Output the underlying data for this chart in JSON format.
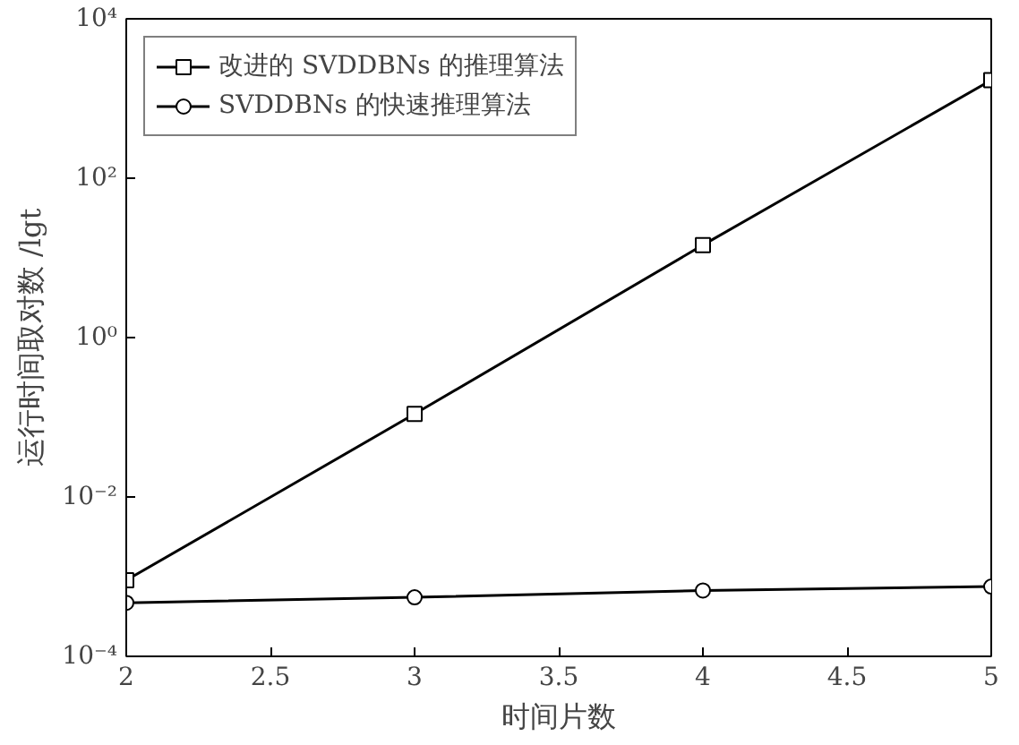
{
  "chart_data": {
    "type": "line",
    "xlabel": "时间片数",
    "ylabel": "运行时间取对数 /lgt",
    "x": [
      2,
      3,
      4,
      5
    ],
    "series": [
      {
        "name": "改进的 SVDDBNs 的推理算法",
        "color": "#000000",
        "marker": "square",
        "values": [
          0.0009,
          0.11,
          14.5,
          1700
        ]
      },
      {
        "name": "SVDDBNs 的快速推理算法",
        "color": "#000000",
        "marker": "circle",
        "values": [
          0.00047,
          0.00055,
          0.00067,
          0.00075
        ]
      }
    ],
    "log": "y",
    "xlim": [
      2,
      5
    ],
    "xticks": [
      2,
      2.5,
      3,
      3.5,
      4,
      4.5,
      5
    ],
    "ylim": [
      0.0001,
      10000
    ],
    "yticks": [
      {
        "value": 0.0001,
        "label": "10⁻⁴"
      },
      {
        "value": 0.01,
        "label": "10⁻²"
      },
      {
        "value": 1,
        "label": "10⁰"
      },
      {
        "value": 100,
        "label": "10²"
      },
      {
        "value": 10000,
        "label": "10⁴"
      }
    ],
    "grid": false,
    "legend": "top left",
    "line_style": "solid"
  }
}
